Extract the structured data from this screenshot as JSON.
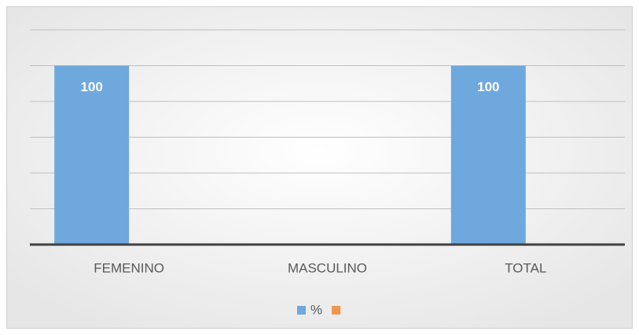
{
  "chart_data": {
    "type": "bar",
    "categories": [
      "FEMENINO",
      "MASCULINO",
      "TOTAL"
    ],
    "series": [
      {
        "name": "%",
        "color": "#6fa8dc",
        "values": [
          100,
          null,
          100
        ]
      },
      {
        "color": "#f0964f",
        "values": [
          null,
          null,
          null
        ]
      }
    ],
    "ylim": [
      0,
      120
    ],
    "yticks": [
      0,
      20,
      40,
      60,
      80,
      100,
      120
    ],
    "grid": true,
    "legend": "bottom"
  }
}
